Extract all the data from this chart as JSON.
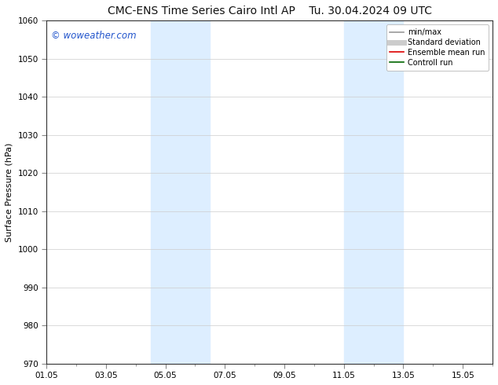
{
  "title_left": "CMC-ENS Time Series Cairo Intl AP",
  "title_right": "Tu. 30.04.2024 09 UTC",
  "ylabel": "Surface Pressure (hPa)",
  "ylim": [
    970,
    1060
  ],
  "yticks": [
    970,
    980,
    990,
    1000,
    1010,
    1020,
    1030,
    1040,
    1050,
    1060
  ],
  "xtick_labels": [
    "01.05",
    "03.05",
    "05.05",
    "07.05",
    "09.05",
    "11.05",
    "13.05",
    "15.05"
  ],
  "xtick_positions": [
    0,
    2,
    4,
    6,
    8,
    10,
    12,
    14
  ],
  "xlim": [
    0,
    15
  ],
  "shaded_bands": [
    {
      "x_start": 3.5,
      "x_end": 5.5,
      "color": "#ddeeff"
    },
    {
      "x_start": 10.0,
      "x_end": 12.0,
      "color": "#ddeeff"
    }
  ],
  "watermark": "© woweather.com",
  "watermark_color": "#2255cc",
  "background_color": "#ffffff",
  "legend_items": [
    {
      "label": "min/max",
      "color": "#999999",
      "lw": 1.2,
      "style": "solid"
    },
    {
      "label": "Standard deviation",
      "color": "#cccccc",
      "lw": 5,
      "style": "solid"
    },
    {
      "label": "Ensemble mean run",
      "color": "#dd0000",
      "lw": 1.2,
      "style": "solid"
    },
    {
      "label": "Controll run",
      "color": "#006600",
      "lw": 1.2,
      "style": "solid"
    }
  ],
  "grid_color": "#cccccc",
  "grid_lw": 0.5,
  "title_fontsize": 10,
  "axis_label_fontsize": 8,
  "tick_fontsize": 7.5
}
